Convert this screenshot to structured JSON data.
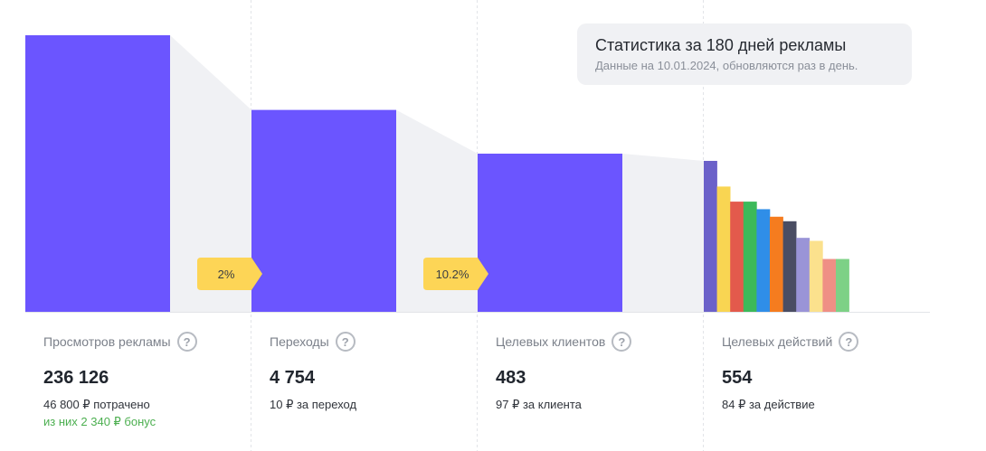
{
  "info": {
    "title": "Статистика за 180 дней рекламы",
    "subtitle": "Данные на 10.01.2024, обновляются раз в день."
  },
  "metrics": [
    {
      "label": "Просмотров рекламы",
      "value": "236 126",
      "sub": "46 800 ₽ потрачено",
      "bonus": "из них 2 340 ₽ бонус"
    },
    {
      "label": "Переходы",
      "value": "4 754",
      "sub": "10 ₽ за переход"
    },
    {
      "label": "Целевых клиентов",
      "value": "483",
      "sub": "97 ₽ за клиента"
    },
    {
      "label": "Целевых действий",
      "value": "554",
      "sub": "84 ₽ за действие"
    }
  ],
  "chart_data": {
    "type": "bar",
    "categories": [
      "Просмотров рекламы",
      "Переходы",
      "Целевых клиентов",
      "Целевых действий"
    ],
    "values": [
      236126,
      4754,
      483,
      554
    ],
    "conversion_badges": [
      "2%",
      "10.2%"
    ],
    "main_color": "#6b55ff",
    "actions_breakdown_relative": [
      1.0,
      0.83,
      0.73,
      0.73,
      0.68,
      0.63,
      0.6,
      0.49,
      0.47,
      0.35,
      0.35
    ],
    "actions_breakdown_colors": [
      "#6b61c9",
      "#f9d552",
      "#e35a4c",
      "#3cb95a",
      "#2f8ee8",
      "#f57c1f",
      "#4a4d63",
      "#9a94d7",
      "#fbe18d",
      "#ef8f85",
      "#7dd186"
    ]
  }
}
